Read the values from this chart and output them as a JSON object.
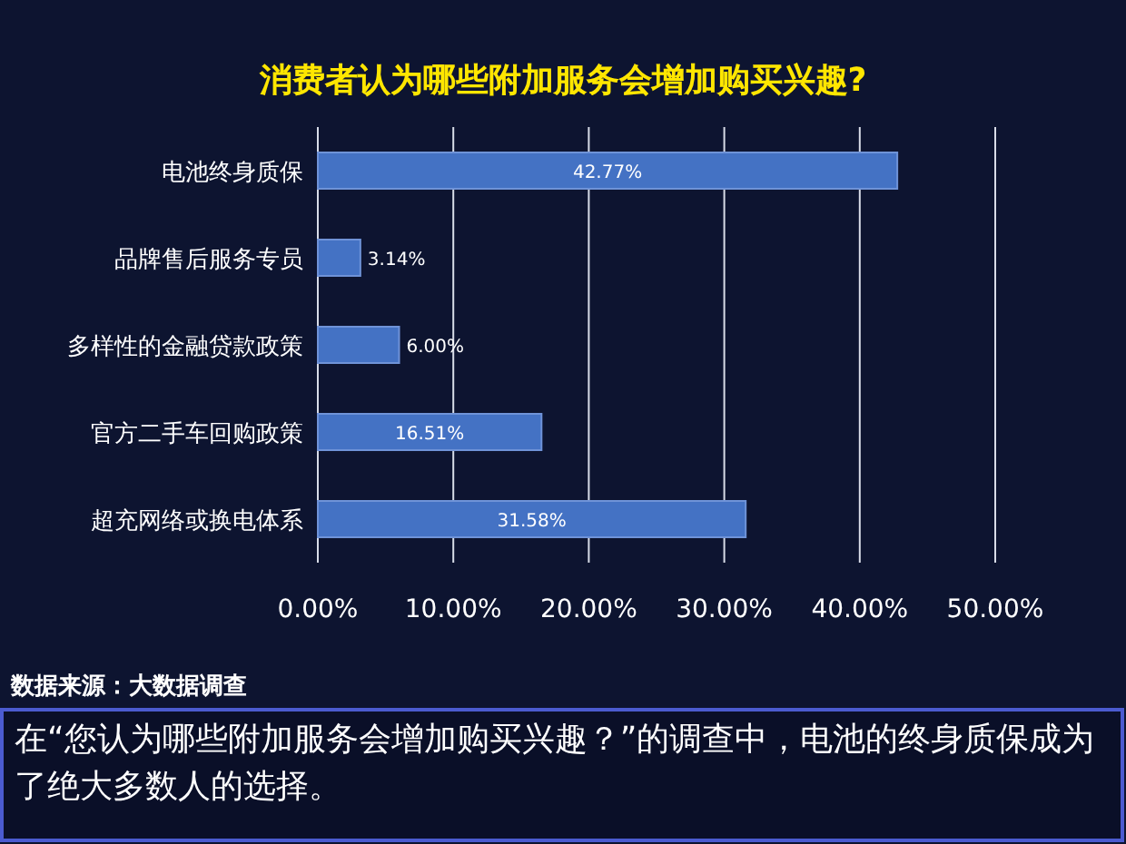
{
  "chart_data": {
    "type": "bar",
    "orientation": "horizontal",
    "title": "消费者认为哪些附加服务会增加购买兴趣?",
    "categories": [
      "电池终身质保",
      "品牌售后服务专员",
      "多样性的金融贷款政策",
      "官方二手车回购政策",
      "超充网络或换电体系"
    ],
    "values": [
      42.77,
      3.14,
      6.0,
      16.51,
      31.58
    ],
    "value_labels": [
      "42.77%",
      "3.14%",
      "6.00%",
      "16.51%",
      "31.58%"
    ],
    "color": "#4472c4",
    "xlim": [
      0,
      50
    ],
    "xticks": [
      {
        "value": 0,
        "label": "0.00%"
      },
      {
        "value": 10,
        "label": "10.00%"
      },
      {
        "value": 20,
        "label": "20.00%"
      },
      {
        "value": 30,
        "label": "30.00%"
      },
      {
        "value": 40,
        "label": "40.00%"
      },
      {
        "value": 50,
        "label": "50.00%"
      }
    ],
    "grid": "x",
    "annotations": [
      "数据来源：大数据调查",
      "在“您认为哪些附加服务会增加购买兴趣？”的调查中，电池的终身质保成为了绝大多数人的选择。"
    ]
  }
}
